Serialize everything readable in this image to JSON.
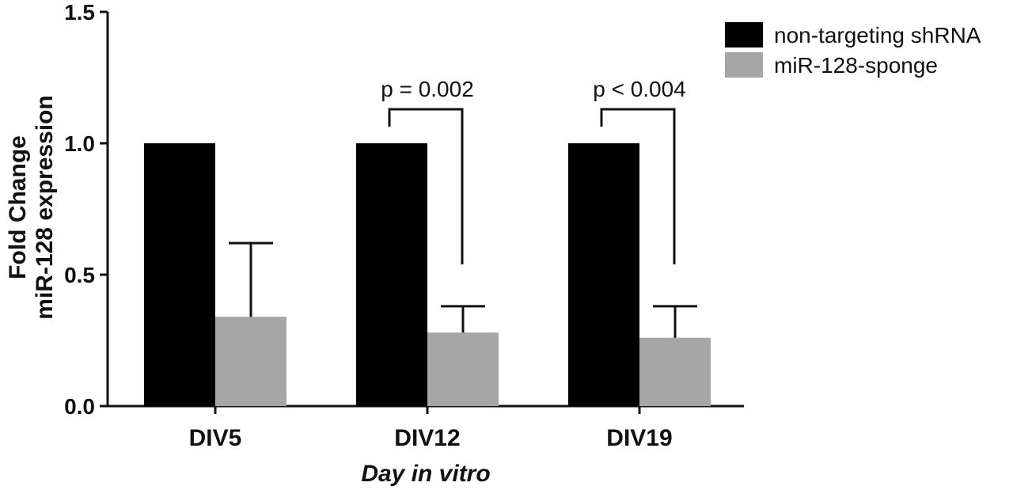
{
  "chart_data": {
    "type": "bar",
    "categories": [
      "DIV5",
      "DIV12",
      "DIV19"
    ],
    "series": [
      {
        "name": "non-targeting shRNA",
        "values": [
          1.0,
          1.0,
          1.0
        ],
        "error": [
          0,
          0,
          0
        ],
        "color": "#000000"
      },
      {
        "name": "miR-128-sponge",
        "values": [
          0.34,
          0.28,
          0.26
        ],
        "error": [
          0.28,
          0.1,
          0.12
        ],
        "color": "#a6a6a6"
      }
    ],
    "xlabel": "Day in vitro",
    "ylabel_lines": [
      "Fold Change",
      "miR-128 expression"
    ],
    "ylim": [
      0,
      1.5
    ],
    "yticks": [
      "0.0",
      "0.5",
      "1.0",
      "1.5"
    ],
    "annotations": [
      {
        "category": "DIV12",
        "text": "p = 0.002"
      },
      {
        "category": "DIV19",
        "text": "p < 0.004"
      }
    ],
    "legend_position": "top-right",
    "grid": false
  }
}
